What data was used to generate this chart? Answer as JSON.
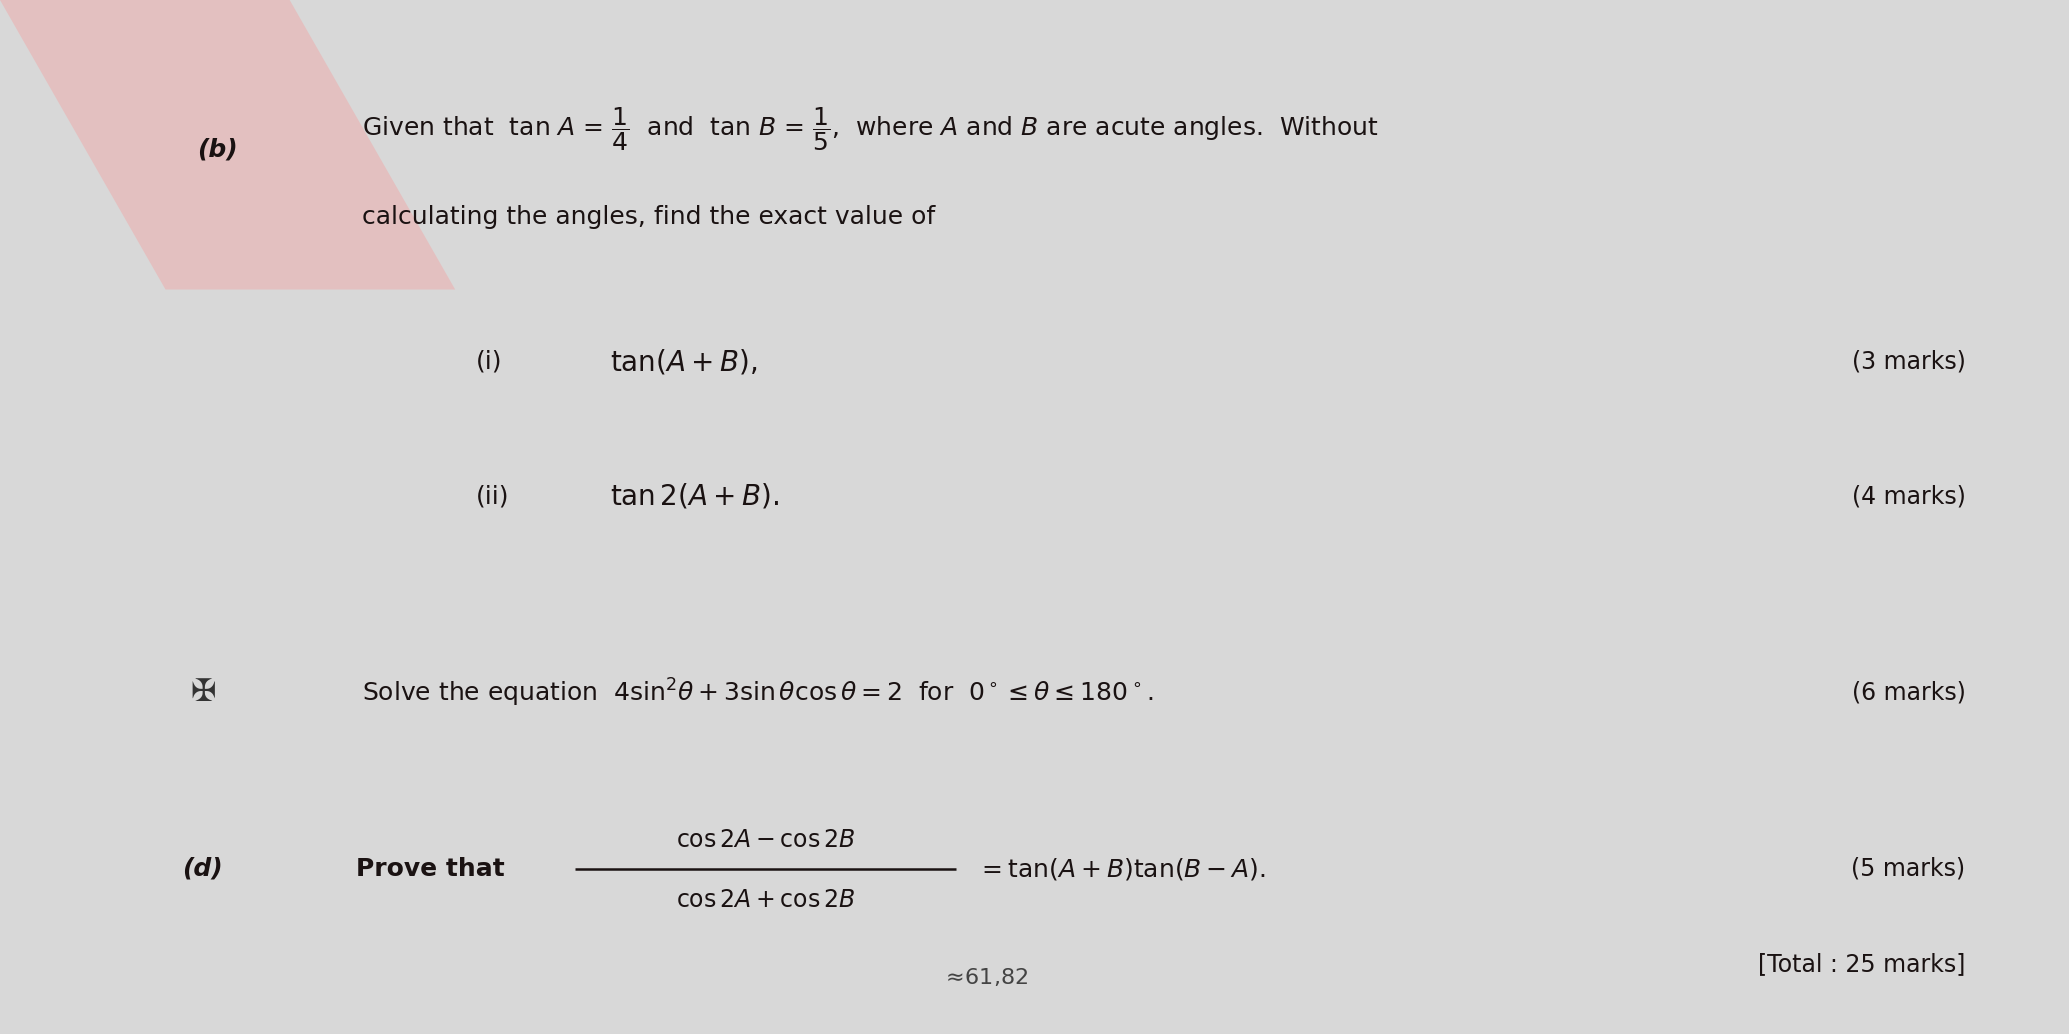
{
  "bg_color": "#d8d8d8",
  "paper_color": "#f0f0f0",
  "text_color": "#1a1212",
  "fig_width": 20.69,
  "fig_height": 10.34,
  "pink_color": "#e8b8b8",
  "pink_alpha": 0.75,
  "fs_main": 18,
  "fs_marks": 17,
  "b_label": "(b)",
  "line1": "Given that  tan $A$ = $\\dfrac{1}{4}$  and  tan $B$ = $\\dfrac{1}{5}$,  where $A$ and $B$ are acute angles.  Without",
  "line2": "calculating the angles, find the exact value of",
  "i_label": "(i)",
  "i_text": "$\\tan\\!(A+B),$",
  "i_marks": "(3 marks)",
  "ii_label": "(ii)",
  "ii_text": "$\\tan 2(A+B).$",
  "ii_marks": "(4 marks)",
  "c_text": "Solve the equation  $4\\sin^2\\!\\theta + 3\\sin\\theta\\cos\\theta = 2$  for  $0^\\circ \\leq \\theta \\leq 180^\\circ$.",
  "c_marks": "(6 marks)",
  "d_label": "(d)",
  "d_prove": "Prove that",
  "d_num": "$\\cos 2A - \\cos 2B$",
  "d_den": "$\\cos 2A + \\cos 2B$",
  "d_rhs": "$= \\tan(A+B)\\tan(B-A).$",
  "d_marks": "(5 marks)",
  "total": "[Total : 25 marks]",
  "scribble": "$\\approx\\!61,\\!82$"
}
